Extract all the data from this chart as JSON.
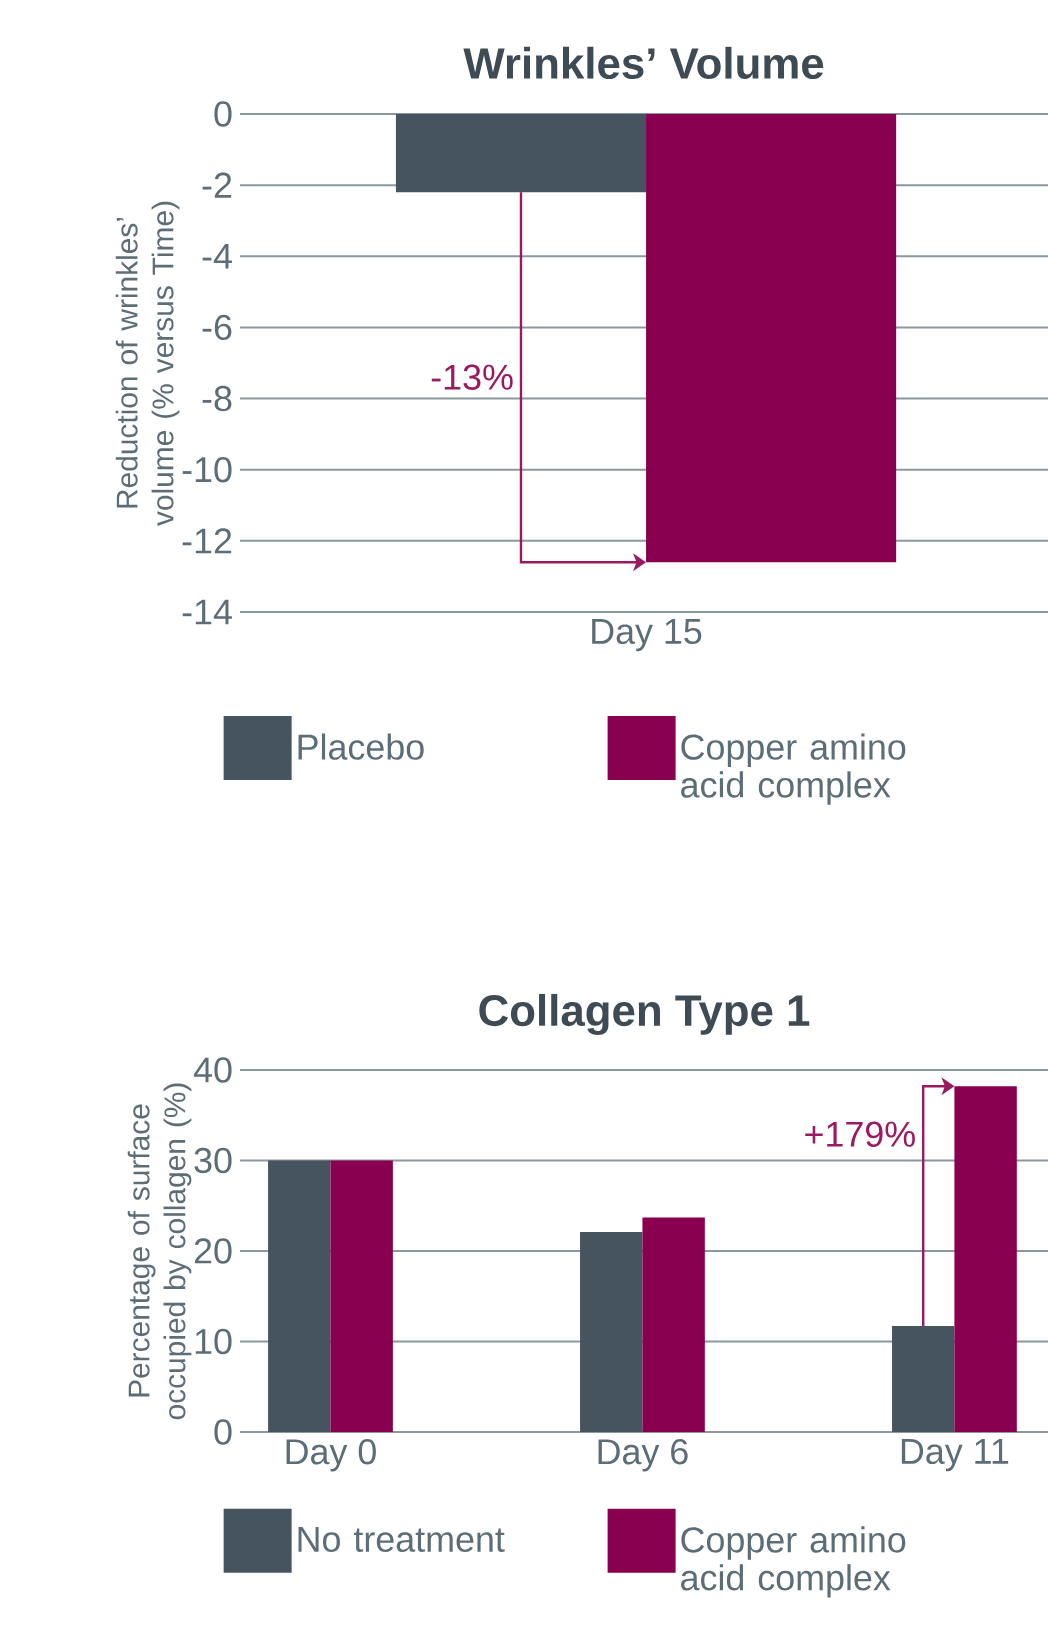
{
  "chart_data": [
    {
      "type": "bar",
      "title": "Wrinkles’ Volume",
      "ylabel": "Reduction of wrinkles’ volume (% versus Time)",
      "categories": [
        "Day 15"
      ],
      "series": [
        {
          "name": "Placebo",
          "color": "#46545f",
          "values": [
            -2.2
          ]
        },
        {
          "name": "Copper amino acid complex",
          "color": "#8a0050",
          "values": [
            -12.6
          ]
        }
      ],
      "ylim": [
        -14,
        0
      ],
      "yticks": [
        -14,
        -12,
        -10,
        -8,
        -6,
        -4,
        -2,
        0
      ],
      "grid": "y",
      "legend": "bottom",
      "annotations": [
        "-13%"
      ]
    },
    {
      "type": "bar",
      "title": "Collagen Type 1",
      "ylabel": "Percentage of surface occupied by collagen (%)",
      "categories": [
        "Day 0",
        "Day 6",
        "Day 11"
      ],
      "series": [
        {
          "name": "No treatment",
          "color": "#46545f",
          "values": [
            30,
            22.1,
            11.7
          ]
        },
        {
          "name": "Copper amino acid complex",
          "color": "#8a0050",
          "values": [
            30,
            23.7,
            38.2
          ]
        }
      ],
      "ylim": [
        0,
        40
      ],
      "yticks": [
        0,
        10,
        20,
        30,
        40
      ],
      "grid": "y",
      "legend": "bottom",
      "annotations": [
        "+179%"
      ]
    }
  ]
}
